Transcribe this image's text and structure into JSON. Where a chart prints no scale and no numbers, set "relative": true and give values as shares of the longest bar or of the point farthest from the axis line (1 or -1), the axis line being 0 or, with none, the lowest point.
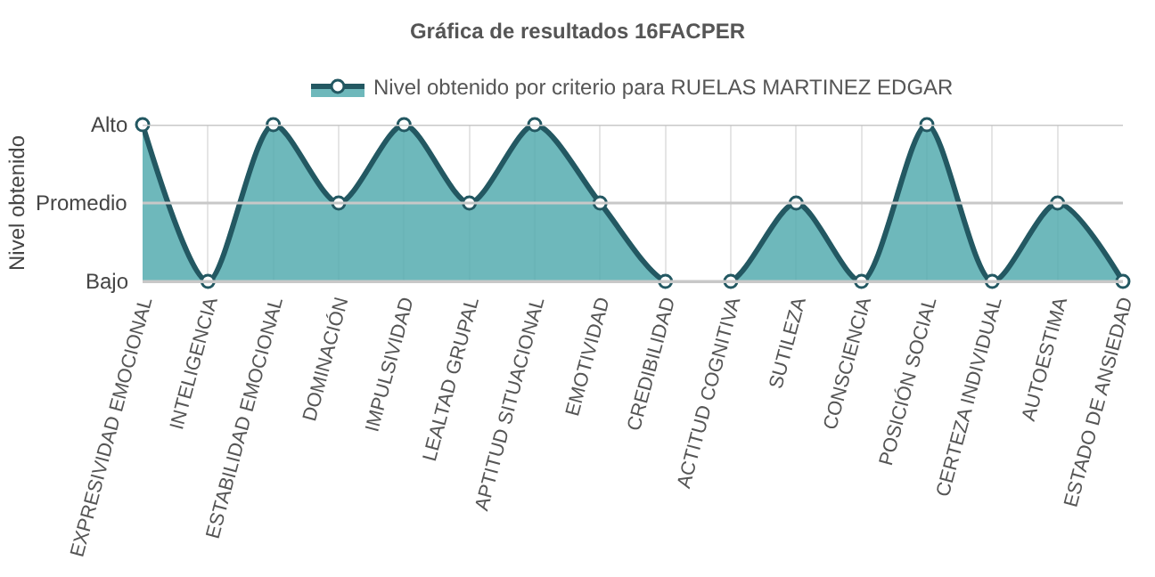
{
  "chart_data": {
    "type": "area",
    "title": "Gráfica de resultados 16FACPER",
    "ylabel": "Nivel obtenido",
    "categories": [
      "EXPRESIVIDAD EMOCIONAL",
      "INTELIGENCIA",
      "ESTABILIDAD EMOCIONAL",
      "DOMINACIÓN",
      "IMPULSIVIDAD",
      "LEALTAD GRUPAL",
      "APTITUD SITUACIONAL",
      "EMOTIVIDAD",
      "CREDIBILIDAD",
      "ACTITUD COGNITIVA",
      "SUTILEZA",
      "CONSCIENCIA",
      "POSICIÓN SOCIAL",
      "CERTEZA INDIVIDUAL",
      "AUTOESTIMA",
      "ESTADO DE ANSIEDAD"
    ],
    "series": [
      {
        "name": "Nivel obtenido por criterio para RUELAS MARTINEZ EDGAR",
        "color": "#235862",
        "values": [
          1,
          0,
          1,
          0.5,
          1,
          0.5,
          1,
          0.5,
          0,
          0,
          0.5,
          0,
          1,
          0,
          0.5,
          0
        ]
      }
    ],
    "relative": true,
    "ref_lines": [
      {
        "axis": "y",
        "value": 0,
        "label": "Bajo",
        "color": "#c8c8c8"
      },
      {
        "axis": "y",
        "value": 0.5,
        "label": "Promedio",
        "color": "#c8c8c8"
      },
      {
        "axis": "y",
        "value": 1,
        "label": "Alto",
        "color": "#c8c8c8"
      }
    ],
    "grid": true,
    "legend": "top",
    "marker": "circle",
    "line_style": "solid"
  }
}
